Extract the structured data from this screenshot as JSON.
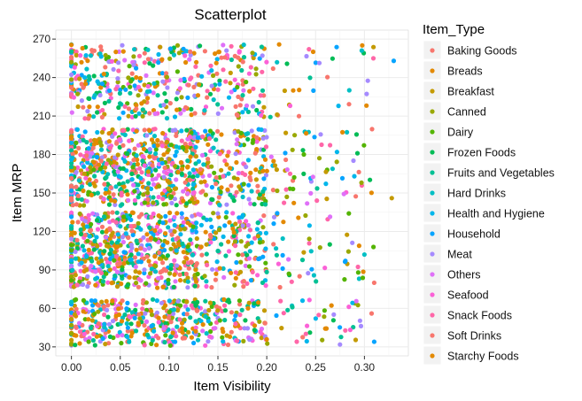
{
  "chart_data": {
    "type": "scatter",
    "title": "Scatterplot",
    "xlabel": "Item Visibility",
    "ylabel": "Item MRP",
    "xlim": [
      -0.016,
      0.345
    ],
    "ylim": [
      23,
      277
    ],
    "xticks": [
      0.0,
      0.05,
      0.1,
      0.15,
      0.2,
      0.25,
      0.3
    ],
    "xtick_labels": [
      "0.00",
      "0.05",
      "0.10",
      "0.15",
      "0.20",
      "0.25",
      "0.30"
    ],
    "yticks": [
      30,
      60,
      90,
      120,
      150,
      180,
      210,
      240,
      270
    ],
    "ytick_labels": [
      "30",
      "60",
      "90",
      "120",
      "150",
      "180",
      "210",
      "240",
      "270"
    ],
    "grid": true,
    "legend_title": "Item_Type",
    "legend_position": "right",
    "series": [
      {
        "name": "Baking Goods",
        "color": "#f8766d"
      },
      {
        "name": "Breads",
        "color": "#e38900"
      },
      {
        "name": "Breakfast",
        "color": "#c49a00"
      },
      {
        "name": "Canned",
        "color": "#99a800"
      },
      {
        "name": "Dairy",
        "color": "#53b400"
      },
      {
        "name": "Frozen Foods",
        "color": "#00bc56"
      },
      {
        "name": "Fruits and Vegetables",
        "color": "#00c094"
      },
      {
        "name": "Hard Drinks",
        "color": "#00bfc4"
      },
      {
        "name": "Health and Hygiene",
        "color": "#00b6eb"
      },
      {
        "name": "Household",
        "color": "#06a4ff"
      },
      {
        "name": "Meat",
        "color": "#a58aff"
      },
      {
        "name": "Others",
        "color": "#df70f8"
      },
      {
        "name": "Seafood",
        "color": "#fb61d7"
      },
      {
        "name": "Snack Foods",
        "color": "#ff66a8"
      },
      {
        "name": "Soft Drinks",
        "color": "#f8766d"
      },
      {
        "name": "Starchy Foods",
        "color": "#e38900"
      }
    ],
    "annotated_points": [
      {
        "x": 0.328,
        "y": 146,
        "series": "Breakfast"
      },
      {
        "x": 0.33,
        "y": 253,
        "series": "Household"
      },
      {
        "x": 0.31,
        "y": 34,
        "series": "Household"
      },
      {
        "x": 0.31,
        "y": 80,
        "series": "Soft Drinks"
      },
      {
        "x": 0.297,
        "y": 158,
        "series": "Canned"
      },
      {
        "x": 0.3,
        "y": 102,
        "series": "Hard Drinks"
      }
    ]
  }
}
